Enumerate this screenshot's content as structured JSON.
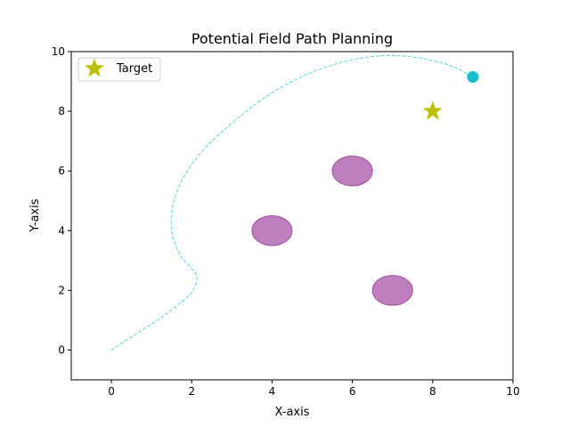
{
  "chart_data": {
    "type": "scatter",
    "title": "Potential Field Path Planning",
    "xlabel": "X-axis",
    "ylabel": "Y-axis",
    "xlim": [
      -1,
      10
    ],
    "ylim": [
      -1,
      10
    ],
    "xticks": [
      0,
      2,
      4,
      6,
      8,
      10
    ],
    "yticks": [
      0,
      2,
      4,
      6,
      8,
      10
    ],
    "grid": false,
    "legend": {
      "placement": "upper-left",
      "entries": [
        {
          "label": "Target",
          "marker": "star",
          "color": "#bfbf00"
        }
      ]
    },
    "target": {
      "x": 8,
      "y": 8
    },
    "current_position": {
      "x": 9,
      "y": 9.15
    },
    "obstacles": [
      {
        "x": 4,
        "y": 4,
        "radius": 0.5
      },
      {
        "x": 6,
        "y": 6,
        "radius": 0.5
      },
      {
        "x": 7,
        "y": 2,
        "radius": 0.5
      }
    ],
    "path": [
      [
        0,
        0
      ],
      [
        0.4,
        0.35
      ],
      [
        0.8,
        0.7
      ],
      [
        1.2,
        1.05
      ],
      [
        1.6,
        1.45
      ],
      [
        1.95,
        1.85
      ],
      [
        2.12,
        2.3
      ],
      [
        2.1,
        2.55
      ],
      [
        1.95,
        2.8
      ],
      [
        1.75,
        3.1
      ],
      [
        1.6,
        3.5
      ],
      [
        1.5,
        4.0
      ],
      [
        1.5,
        4.6
      ],
      [
        1.6,
        5.2
      ],
      [
        1.8,
        5.8
      ],
      [
        2.1,
        6.4
      ],
      [
        2.5,
        7.0
      ],
      [
        3.0,
        7.6
      ],
      [
        3.5,
        8.15
      ],
      [
        4.1,
        8.7
      ],
      [
        4.8,
        9.2
      ],
      [
        5.5,
        9.55
      ],
      [
        6.2,
        9.78
      ],
      [
        6.9,
        9.87
      ],
      [
        7.5,
        9.82
      ],
      [
        8.0,
        9.7
      ],
      [
        8.5,
        9.5
      ],
      [
        9.0,
        9.15
      ]
    ],
    "colors": {
      "path": "#5bd3df",
      "current": "#17becf",
      "obstacle": "#bf7fbf",
      "obstacle_edge": "#a04ca0",
      "target": "#bfbf00"
    }
  }
}
